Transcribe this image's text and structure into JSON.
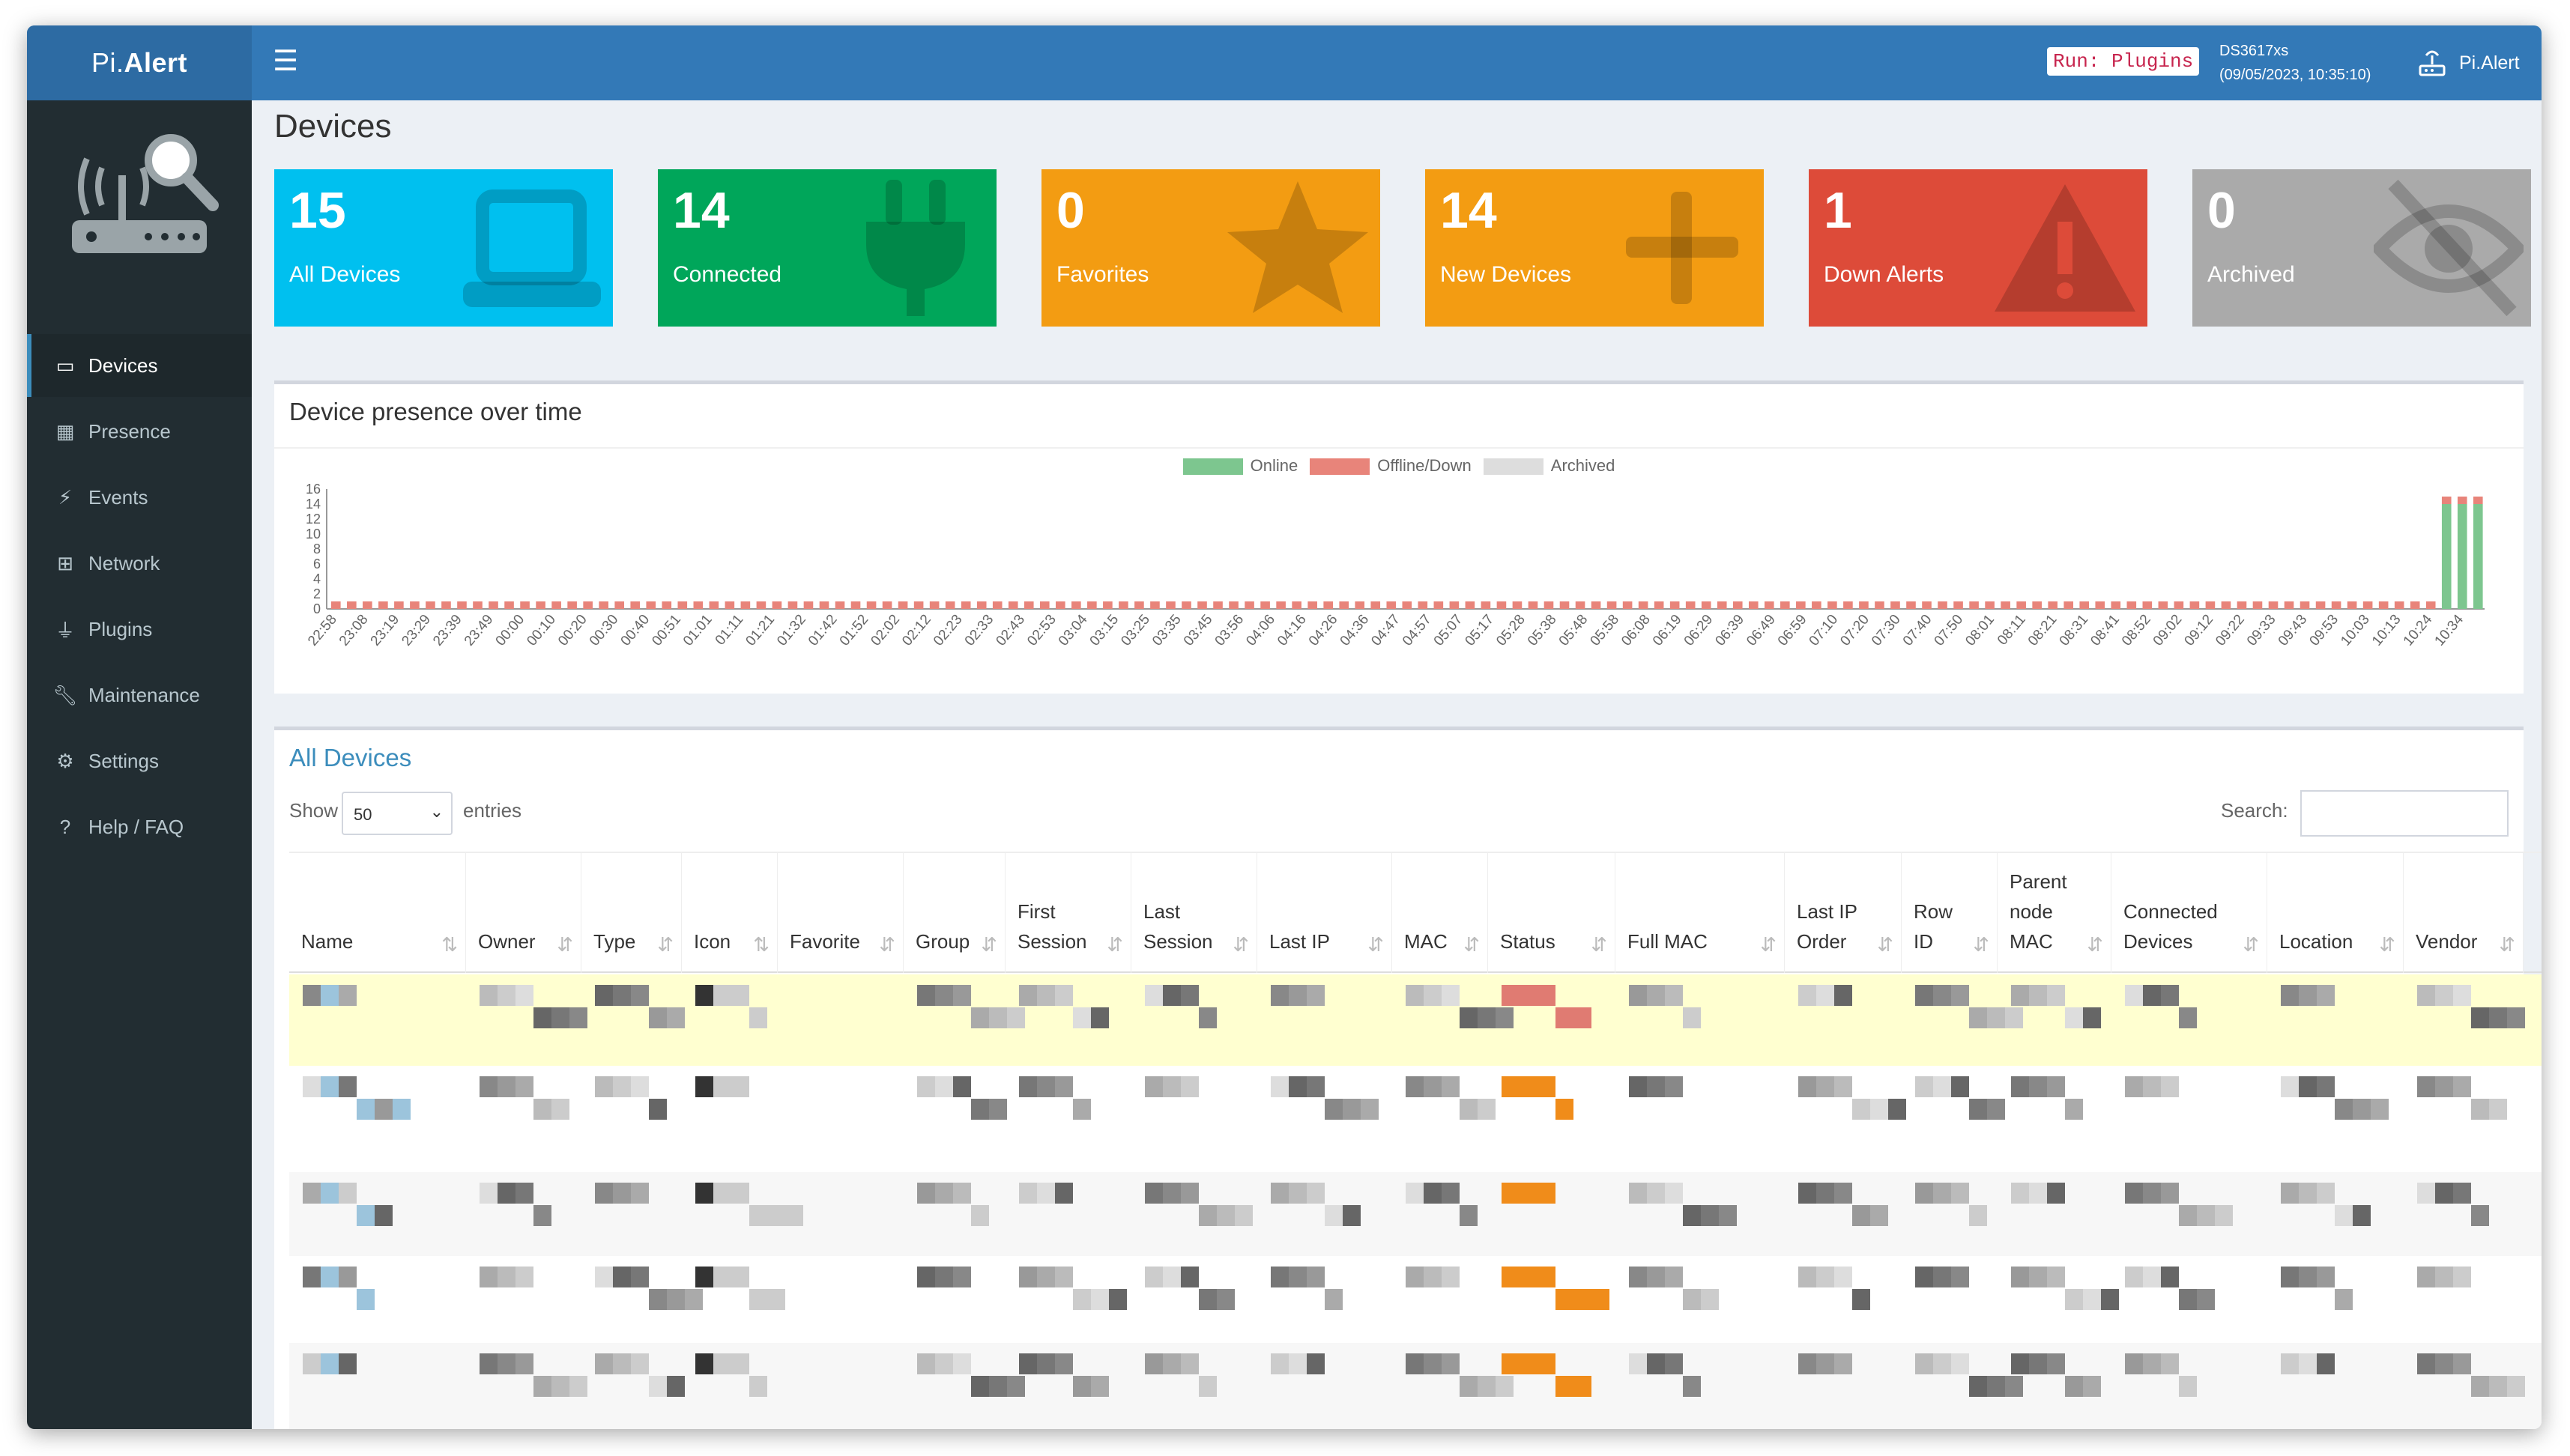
{
  "app": {
    "name_prefix": "Pi.",
    "name_suffix": "Alert",
    "run_badge": "Run: Plugins",
    "server_name": "DS3617xs",
    "server_time": "(09/05/2023, 10:35:10)",
    "user_label": "Pi.Alert"
  },
  "sidebar": {
    "items": [
      {
        "label": "Devices",
        "icon": "laptop-icon",
        "active": true
      },
      {
        "label": "Presence",
        "icon": "calendar-icon"
      },
      {
        "label": "Events",
        "icon": "bolt-icon"
      },
      {
        "label": "Network",
        "icon": "sitemap-icon"
      },
      {
        "label": "Plugins",
        "icon": "plug-icon"
      },
      {
        "label": "Maintenance",
        "icon": "wrench-icon"
      },
      {
        "label": "Settings",
        "icon": "gear-icon"
      },
      {
        "label": "Help / FAQ",
        "icon": "question-icon"
      }
    ]
  },
  "page": {
    "title": "Devices"
  },
  "stats": [
    {
      "count": "15",
      "label": "All Devices",
      "color": "#00c0ef",
      "icon": "laptop-icon"
    },
    {
      "count": "14",
      "label": "Connected",
      "color": "#00a65a",
      "icon": "plug-icon"
    },
    {
      "count": "0",
      "label": "Favorites",
      "color": "#f39c12",
      "icon": "star-icon"
    },
    {
      "count": "14",
      "label": "New Devices",
      "color": "#f39c12",
      "icon": "plus-icon"
    },
    {
      "count": "1",
      "label": "Down Alerts",
      "color": "#dd4b39",
      "icon": "warning-icon"
    },
    {
      "count": "0",
      "label": "Archived",
      "color": "#aaaaaa",
      "icon": "eye-slash-icon"
    }
  ],
  "presence": {
    "title": "Device presence over time"
  },
  "chart_data": {
    "type": "bar",
    "series": [
      {
        "name": "Online",
        "color": "#7dc68f"
      },
      {
        "name": "Offline/Down",
        "color": "#e8847a"
      },
      {
        "name": "Archived",
        "color": "#dddddd"
      }
    ],
    "ylim": [
      0,
      16
    ],
    "yticks": [
      "0",
      "2",
      "4",
      "6",
      "8",
      "10",
      "12",
      "14",
      "16"
    ],
    "xticks": [
      "22:58",
      "23:08",
      "23:19",
      "23:29",
      "23:39",
      "23:49",
      "00:00",
      "00:10",
      "00:20",
      "00:30",
      "00:40",
      "00:51",
      "01:01",
      "01:11",
      "01:21",
      "01:32",
      "01:42",
      "01:52",
      "02:02",
      "02:12",
      "02:23",
      "02:33",
      "02:43",
      "02:53",
      "03:04",
      "03:15",
      "03:25",
      "03:35",
      "03:45",
      "03:56",
      "04:06",
      "04:16",
      "04:26",
      "04:36",
      "04:47",
      "04:57",
      "05:07",
      "05:17",
      "05:28",
      "05:38",
      "05:48",
      "05:58",
      "06:08",
      "06:19",
      "06:29",
      "06:39",
      "06:49",
      "06:59",
      "07:10",
      "07:20",
      "07:30",
      "07:40",
      "07:50",
      "08:01",
      "08:11",
      "08:21",
      "08:31",
      "08:41",
      "08:52",
      "09:02",
      "09:12",
      "09:22",
      "09:33",
      "09:43",
      "09:53",
      "10:03",
      "10:13",
      "10:24",
      "10:34"
    ],
    "baseline_online": 0,
    "baseline_offline": 1,
    "final_online": 14,
    "final_offline": 1
  },
  "table": {
    "title": "All Devices",
    "show_label": "Show",
    "page_size": "50",
    "entries_label": "entries",
    "search_label": "Search:",
    "columns": [
      {
        "line1": "",
        "line2": "Name"
      },
      {
        "line1": "",
        "line2": "Owner"
      },
      {
        "line1": "",
        "line2": "Type"
      },
      {
        "line1": "",
        "line2": "Icon"
      },
      {
        "line1": "",
        "line2": "Favorite"
      },
      {
        "line1": "",
        "line2": "Group"
      },
      {
        "line1": "First",
        "line2": "Session"
      },
      {
        "line1": "Last",
        "line2": "Session"
      },
      {
        "line1": "",
        "line2": "Last IP"
      },
      {
        "line1": "",
        "line2": "MAC"
      },
      {
        "line1": "",
        "line2": "Status"
      },
      {
        "line1": "",
        "line2": "Full MAC"
      },
      {
        "line1": "Last IP",
        "line2": "Order"
      },
      {
        "line1": "Row",
        "line2": "ID"
      },
      {
        "line1": "Parent",
        "line1b": "node",
        "line2": "MAC"
      },
      {
        "line1": "Connected",
        "line2": "Devices"
      },
      {
        "line1": "",
        "line2": "Location"
      },
      {
        "line1": "",
        "line2": "Vendor"
      }
    ]
  }
}
